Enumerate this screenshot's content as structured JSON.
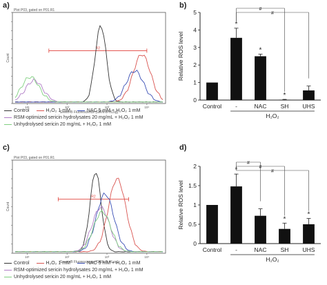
{
  "panel_labels": [
    "a)",
    "b)",
    "c)",
    "d)"
  ],
  "legend": {
    "control": "Control",
    "h2o2": "H₂O₂ 1 mM",
    "nac": "NAC 5 mM + H₂O₂ 1 mM",
    "rsm": "RSM-optimized sericin hydrolysates 20 mg/mL + H₂O₂ 1 mM",
    "uhs": "Unhydrolysed sericin 20 mg/mL + H₂O₂ 1 mM"
  },
  "colors": {
    "control": "#333333",
    "h2o2": "#d9534f",
    "nac": "#3a4fb5",
    "rsm": "#b07cc6",
    "uhs": "#7fcf7f",
    "gate": "#e0413a",
    "bar": "#111111"
  },
  "chart_data": [
    {
      "type": "line",
      "panel": "a",
      "title": "Plot P03, gated on P01.R1",
      "xlabel": "Green-B Fluorescence (GRN-B-HLog)",
      "ylabel": "Count",
      "x_scale": "log",
      "x_ticks": [
        "10¹",
        "10²",
        "10³",
        "10⁴"
      ],
      "gate_label": "R2",
      "gate_range": [
        35,
        10000
      ],
      "peaks": [
        {
          "name": "Control",
          "center": 700,
          "height": 0.88
        },
        {
          "name": "H2O2 1 mM",
          "center": 7500,
          "height": 0.55
        },
        {
          "name": "NAC 5 mM + H2O2 1 mM",
          "center": 5000,
          "height": 0.36
        },
        {
          "name": "RSM-optimized sericin hydrolysates 20 mg/mL + H2O2 1 mM",
          "center": 15,
          "height": 0.25
        },
        {
          "name": "Unhydrolysed sericin 20 mg/mL + H2O2 1 mM",
          "center": 12,
          "height": 0.29
        }
      ]
    },
    {
      "type": "bar",
      "panel": "b",
      "ylabel": "Relative ROS level",
      "xlabel": "H₂O₂",
      "categories": [
        "Control",
        "-",
        "NAC",
        "SH",
        "UHS"
      ],
      "values": [
        1.0,
        3.55,
        2.5,
        0.02,
        0.55
      ],
      "errors": [
        0,
        0.55,
        0.12,
        0.02,
        0.25
      ],
      "significance": [
        "",
        "*",
        "*",
        "*",
        ""
      ],
      "brackets": [
        {
          "from": "-",
          "to": "SH",
          "label": "#"
        },
        {
          "from": "-",
          "to": "UHS",
          "label": "#"
        }
      ],
      "ylim": [
        0,
        5
      ],
      "yticks": [
        0,
        1,
        2,
        3,
        4,
        5
      ],
      "h2o2_group": [
        "-",
        "NAC",
        "SH",
        "UHS"
      ]
    },
    {
      "type": "line",
      "panel": "c",
      "title": "Plot P03, gated on P01.R1",
      "xlabel": "Green-B Fluorescence (GRN-B-HLog)",
      "ylabel": "Count",
      "x_scale": "log",
      "x_ticks": [
        "10¹",
        "10²",
        "10³",
        "10⁴"
      ],
      "gate_label": "R2",
      "gate_range": [
        60,
        3500
      ],
      "peaks": [
        {
          "name": "Control",
          "center": 520,
          "height": 0.9
        },
        {
          "name": "H2O2 1 mM",
          "center": 1800,
          "height": 0.82
        },
        {
          "name": "NAC 5 mM + H2O2 1 mM",
          "center": 900,
          "height": 0.65
        },
        {
          "name": "RSM-optimized sericin hydrolysates 20 mg/mL + H2O2 1 mM",
          "center": 700,
          "height": 0.5
        },
        {
          "name": "Unhydrolysed sericin 20 mg/mL + H2O2 1 mM",
          "center": 760,
          "height": 0.45
        }
      ]
    },
    {
      "type": "bar",
      "panel": "d",
      "ylabel": "Relative ROS level",
      "xlabel": "H₂O₂",
      "categories": [
        "Control",
        "-",
        "NAC",
        "SH",
        "UHS"
      ],
      "values": [
        1.0,
        1.48,
        0.72,
        0.38,
        0.5
      ],
      "errors": [
        0,
        0.32,
        0.18,
        0.15,
        0.15
      ],
      "significance": [
        "",
        "*",
        "",
        "*",
        "*"
      ],
      "brackets": [
        {
          "from": "-",
          "to": "NAC",
          "label": "#"
        },
        {
          "from": "-",
          "to": "SH",
          "label": "#"
        },
        {
          "from": "-",
          "to": "UHS",
          "label": "#"
        }
      ],
      "ylim": [
        0,
        2
      ],
      "yticks": [
        0,
        0.5,
        1,
        1.5,
        2
      ],
      "h2o2_group": [
        "-",
        "NAC",
        "SH",
        "UHS"
      ]
    }
  ]
}
